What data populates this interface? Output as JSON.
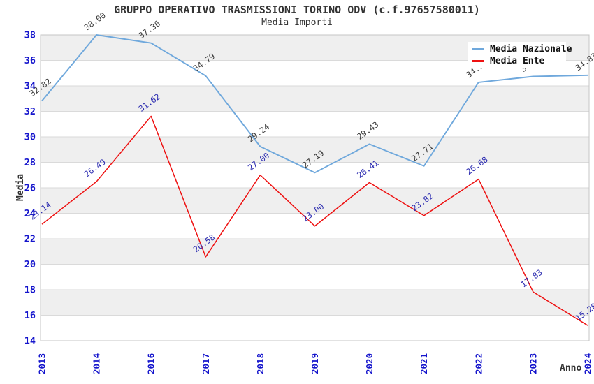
{
  "title": "GRUPPO OPERATIVO TRASMISSIONI TORINO ODV (c.f.97657580011)",
  "subtitle": "Media Importi",
  "legend": [
    {
      "label": "Media Nazionale",
      "color": "#6FA8DC"
    },
    {
      "label": "Media Ente",
      "color": "#EE1111"
    }
  ],
  "colors": {
    "band": "#EFEFEF",
    "grid": "#DADADA",
    "border": "#C4C4C4",
    "tick_label": "#1414CC",
    "title_text": "#333333"
  },
  "chart_data": {
    "type": "line",
    "title": "GRUPPO OPERATIVO TRASMISSIONI TORINO ODV (c.f.97657580011)",
    "subtitle": "Media Importi",
    "xlabel": "Anno",
    "ylabel": "Media",
    "ylim": [
      14,
      38
    ],
    "yticks": [
      38,
      36,
      34,
      32,
      30,
      28,
      26,
      24,
      22,
      20,
      18,
      16,
      14
    ],
    "grid": true,
    "legend_position": "top-right",
    "categories": [
      "2013",
      "2014",
      "2016",
      "2017",
      "2018",
      "2019",
      "2020",
      "2021",
      "2022",
      "2023",
      "2024"
    ],
    "series": [
      {
        "name": "Media Nazionale",
        "color": "#6FA8DC",
        "label_color": "#3A3A3A",
        "values": [
          32.82,
          38.0,
          37.36,
          34.79,
          29.24,
          27.19,
          29.43,
          27.71,
          34.28,
          34.74,
          34.83
        ],
        "labels": [
          "32.82",
          "38.00",
          "37.36",
          "34.79",
          "29.24",
          "27.19",
          "29.43",
          "27.71",
          "34.28",
          "34.74",
          "34.83"
        ]
      },
      {
        "name": "Media Ente",
        "color": "#EE1111",
        "label_color": "#2A2AB0",
        "values": [
          23.14,
          26.49,
          31.62,
          20.58,
          27.0,
          23.0,
          26.41,
          23.82,
          26.68,
          17.83,
          15.2
        ],
        "labels": [
          "23.14",
          "26.49",
          "31.62",
          "20.58",
          "27.00",
          "23.00",
          "26.41",
          "23.82",
          "26.68",
          "17.83",
          "15.20"
        ]
      }
    ]
  }
}
